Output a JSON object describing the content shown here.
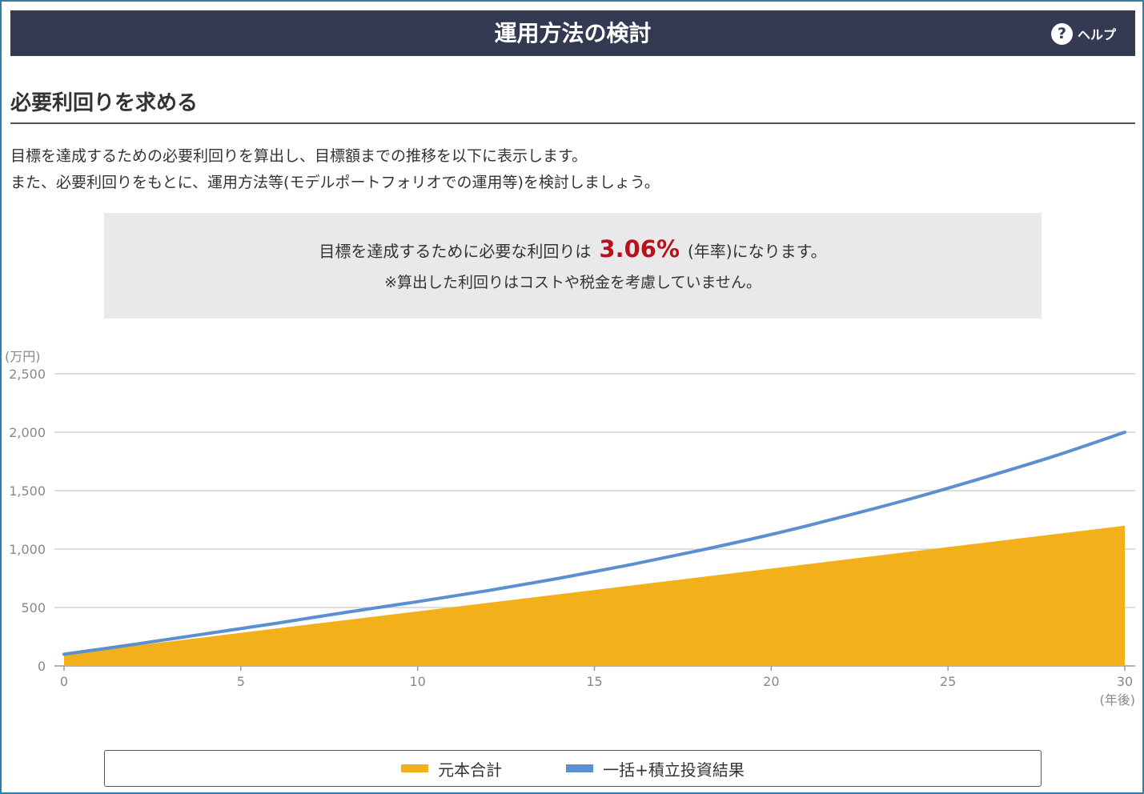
{
  "header": {
    "title": "運用方法の検討",
    "help_label": "ヘルプ",
    "help_icon": "?"
  },
  "section": {
    "title": "必要利回りを求める",
    "description": [
      "目標を達成するための必要利回りを算出し、目標額までの推移を以下に表示します。",
      "また、必要利回りをもとに、運用方法等(モデルポートフォリオでの運用等)を検討しましょう。"
    ]
  },
  "result": {
    "prefix": "目標を達成するために必要な利回りは",
    "rate": "3.06%",
    "suffix": "(年率)になります。",
    "note": "※算出した利回りはコストや税金を考慮していません。"
  },
  "colors": {
    "header_bg": "#333a52",
    "rate": "#b5121b",
    "principal": "#f2b11a",
    "result_line": "#5a8fd0",
    "box_bg": "#e9e9eb"
  },
  "chart_data": {
    "type": "area",
    "ylabel": "(万円)",
    "xlabel": "(年後)",
    "ylim": [
      0,
      2500
    ],
    "xlim": [
      0,
      30
    ],
    "yticks": [
      0,
      500,
      1000,
      1500,
      2000,
      2500
    ],
    "ytick_labels": [
      "0",
      "500",
      "1,000",
      "1,500",
      "2,000",
      "2,500"
    ],
    "xticks": [
      0,
      5,
      10,
      15,
      20,
      25,
      30
    ],
    "xtick_labels": [
      "0",
      "5",
      "10",
      "15",
      "20",
      "25",
      "30"
    ],
    "grid": true,
    "legend_position": "bottom",
    "series": [
      {
        "name": "元本合計",
        "type": "area",
        "color": "#f2b11a",
        "x": [
          0,
          5,
          10,
          15,
          20,
          25,
          30
        ],
        "values": [
          100,
          283,
          467,
          650,
          833,
          1017,
          1200
        ]
      },
      {
        "name": "一括+積立投資結果",
        "type": "line",
        "color": "#5a8fd0",
        "x": [
          0,
          2,
          4,
          6,
          8,
          10,
          12,
          14,
          16,
          18,
          20,
          22,
          24,
          26,
          28,
          30
        ],
        "values": [
          100,
          185,
          275,
          365,
          460,
          550,
          645,
          750,
          865,
          990,
          1125,
          1275,
          1435,
          1610,
          1795,
          2000
        ]
      }
    ]
  }
}
